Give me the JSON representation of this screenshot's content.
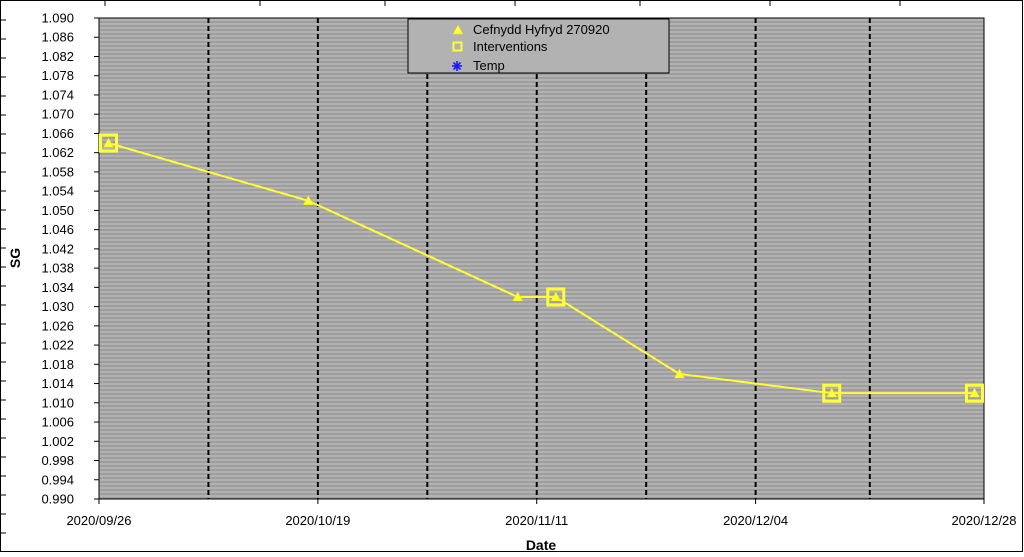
{
  "chart_data": {
    "type": "line",
    "title": "",
    "xlabel": "Date",
    "ylabel": "SG",
    "ylim": [
      0.99,
      1.09
    ],
    "y_ticks": [
      "1.090",
      "1.086",
      "1.082",
      "1.078",
      "1.074",
      "1.070",
      "1.066",
      "1.062",
      "1.058",
      "1.054",
      "1.050",
      "1.046",
      "1.042",
      "1.038",
      "1.034",
      "1.030",
      "1.026",
      "1.022",
      "1.018",
      "1.014",
      "1.010",
      "1.006",
      "1.002",
      "0.998",
      "0.994",
      "0.990"
    ],
    "xlim": [
      "2020/09/26",
      "2020/12/28"
    ],
    "x_ticks": [
      "2020/09/26",
      "2020/10/19",
      "2020/11/11",
      "2020/12/04",
      "2020/12/28"
    ],
    "grid": "horizontal fine gridlines on grey background; dashed vertical gridlines",
    "legend_position": "top-center",
    "legend": [
      "Cefnydd Hyfryd 270920",
      "Interventions",
      "Temp"
    ],
    "series": [
      {
        "name": "Cefnydd Hyfryd 270920",
        "marker": "triangle",
        "color": "#ffff33",
        "x": [
          "2020/09/27",
          "2020/10/18",
          "2020/11/09",
          "2020/11/13",
          "2020/11/26",
          "2020/12/12",
          "2020/12/27"
        ],
        "y": [
          1.064,
          1.052,
          1.032,
          1.032,
          1.016,
          1.012,
          1.012
        ]
      },
      {
        "name": "Interventions",
        "marker": "square",
        "color": "#ffff33",
        "x": [
          "2020/09/27",
          "2020/11/13",
          "2020/12/12",
          "2020/12/27"
        ],
        "y": [
          1.064,
          1.032,
          1.012,
          1.012
        ]
      },
      {
        "name": "Temp",
        "marker": "asterisk",
        "color": "#1a1aff",
        "x": [],
        "y": []
      }
    ]
  }
}
